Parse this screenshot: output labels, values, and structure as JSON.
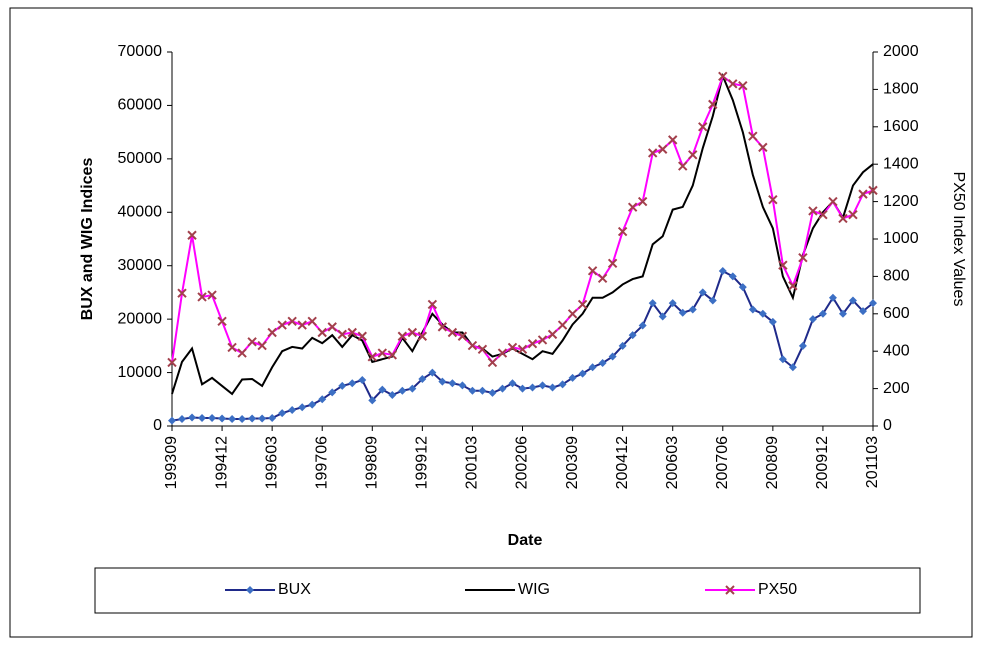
{
  "chart_data": {
    "type": "line",
    "x_label": "Date",
    "y_label": "BUX and WIG Indices",
    "y2_label": "PX50 Index Values",
    "categories": [
      "199309",
      null,
      null,
      null,
      null,
      "199412",
      null,
      null,
      null,
      null,
      "199603",
      null,
      null,
      null,
      null,
      "199706",
      null,
      null,
      null,
      null,
      "199809",
      null,
      null,
      null,
      null,
      "199912",
      null,
      null,
      null,
      null,
      "200103",
      null,
      null,
      null,
      null,
      "200206",
      null,
      null,
      null,
      null,
      "200309",
      null,
      null,
      null,
      null,
      "200412",
      null,
      null,
      null,
      null,
      "200603",
      null,
      null,
      null,
      null,
      "200706",
      null,
      null,
      null,
      null,
      "200809",
      null,
      null,
      null,
      null,
      "200912",
      null,
      null,
      null,
      null,
      "201103"
    ],
    "ylim": [
      0,
      70000
    ],
    "yticks": [
      0,
      10000,
      20000,
      30000,
      40000,
      50000,
      60000,
      70000
    ],
    "y2lim": [
      0,
      2000
    ],
    "y2ticks": [
      0,
      200,
      400,
      600,
      800,
      1000,
      1200,
      1400,
      1600,
      1800,
      2000
    ],
    "grid": false,
    "legend": "bottom",
    "series": [
      {
        "name": "BUX",
        "color": "#1f2a8a",
        "marker": "diamond",
        "marker_color": "#3c6fc4",
        "values": [
          1000,
          1300,
          1600,
          1500,
          1500,
          1400,
          1300,
          1300,
          1400,
          1400,
          1500,
          2400,
          3000,
          3500,
          4000,
          5000,
          6300,
          7500,
          8000,
          8600,
          4800,
          6800,
          5800,
          6600,
          7000,
          8800,
          10000,
          8300,
          8000,
          7600,
          6600,
          6600,
          6200,
          7000,
          8000,
          7000,
          7200,
          7600,
          7200,
          7800,
          9000,
          9800,
          11000,
          11800,
          13000,
          15000,
          17000,
          18800,
          23000,
          20500,
          23000,
          21200,
          21800,
          25000,
          23500,
          29000,
          28000,
          26000,
          21800,
          21000,
          19500,
          12500,
          11000,
          15000,
          20000,
          21000,
          24000,
          21000,
          23500,
          21500,
          23000
        ]
      },
      {
        "name": "WIG",
        "color": "#000000",
        "marker": "none",
        "values": [
          6000,
          12000,
          14500,
          7800,
          9000,
          7500,
          6000,
          8700,
          8800,
          7500,
          11000,
          14000,
          14800,
          14500,
          16500,
          15500,
          17000,
          14800,
          17000,
          16000,
          12000,
          12500,
          13000,
          16500,
          14000,
          17500,
          21000,
          19000,
          17500,
          17500,
          15000,
          14500,
          13000,
          13500,
          14500,
          13500,
          12500,
          14000,
          13500,
          16000,
          19000,
          21000,
          24000,
          24000,
          25000,
          26500,
          27500,
          28000,
          34000,
          35500,
          40500,
          41000,
          45000,
          52000,
          58000,
          65500,
          61000,
          55000,
          47000,
          41000,
          37000,
          28000,
          24000,
          32000,
          37000,
          40000,
          42000,
          39000,
          45000,
          47500,
          49000
        ]
      },
      {
        "name": "PX50",
        "color": "#ff00ff",
        "marker": "x",
        "marker_color": "#a3404c",
        "axis": "y2",
        "values": [
          340,
          710,
          1020,
          690,
          700,
          560,
          420,
          390,
          450,
          430,
          500,
          540,
          560,
          540,
          560,
          500,
          530,
          490,
          500,
          480,
          370,
          390,
          380,
          480,
          500,
          480,
          650,
          530,
          500,
          480,
          430,
          410,
          340,
          390,
          420,
          410,
          440,
          460,
          490,
          540,
          600,
          650,
          830,
          790,
          870,
          1040,
          1170,
          1200,
          1460,
          1480,
          1530,
          1390,
          1450,
          1600,
          1720,
          1870,
          1830,
          1820,
          1550,
          1490,
          1210,
          860,
          750,
          900,
          1150,
          1130,
          1200,
          1110,
          1130,
          1240,
          1260
        ]
      }
    ]
  }
}
